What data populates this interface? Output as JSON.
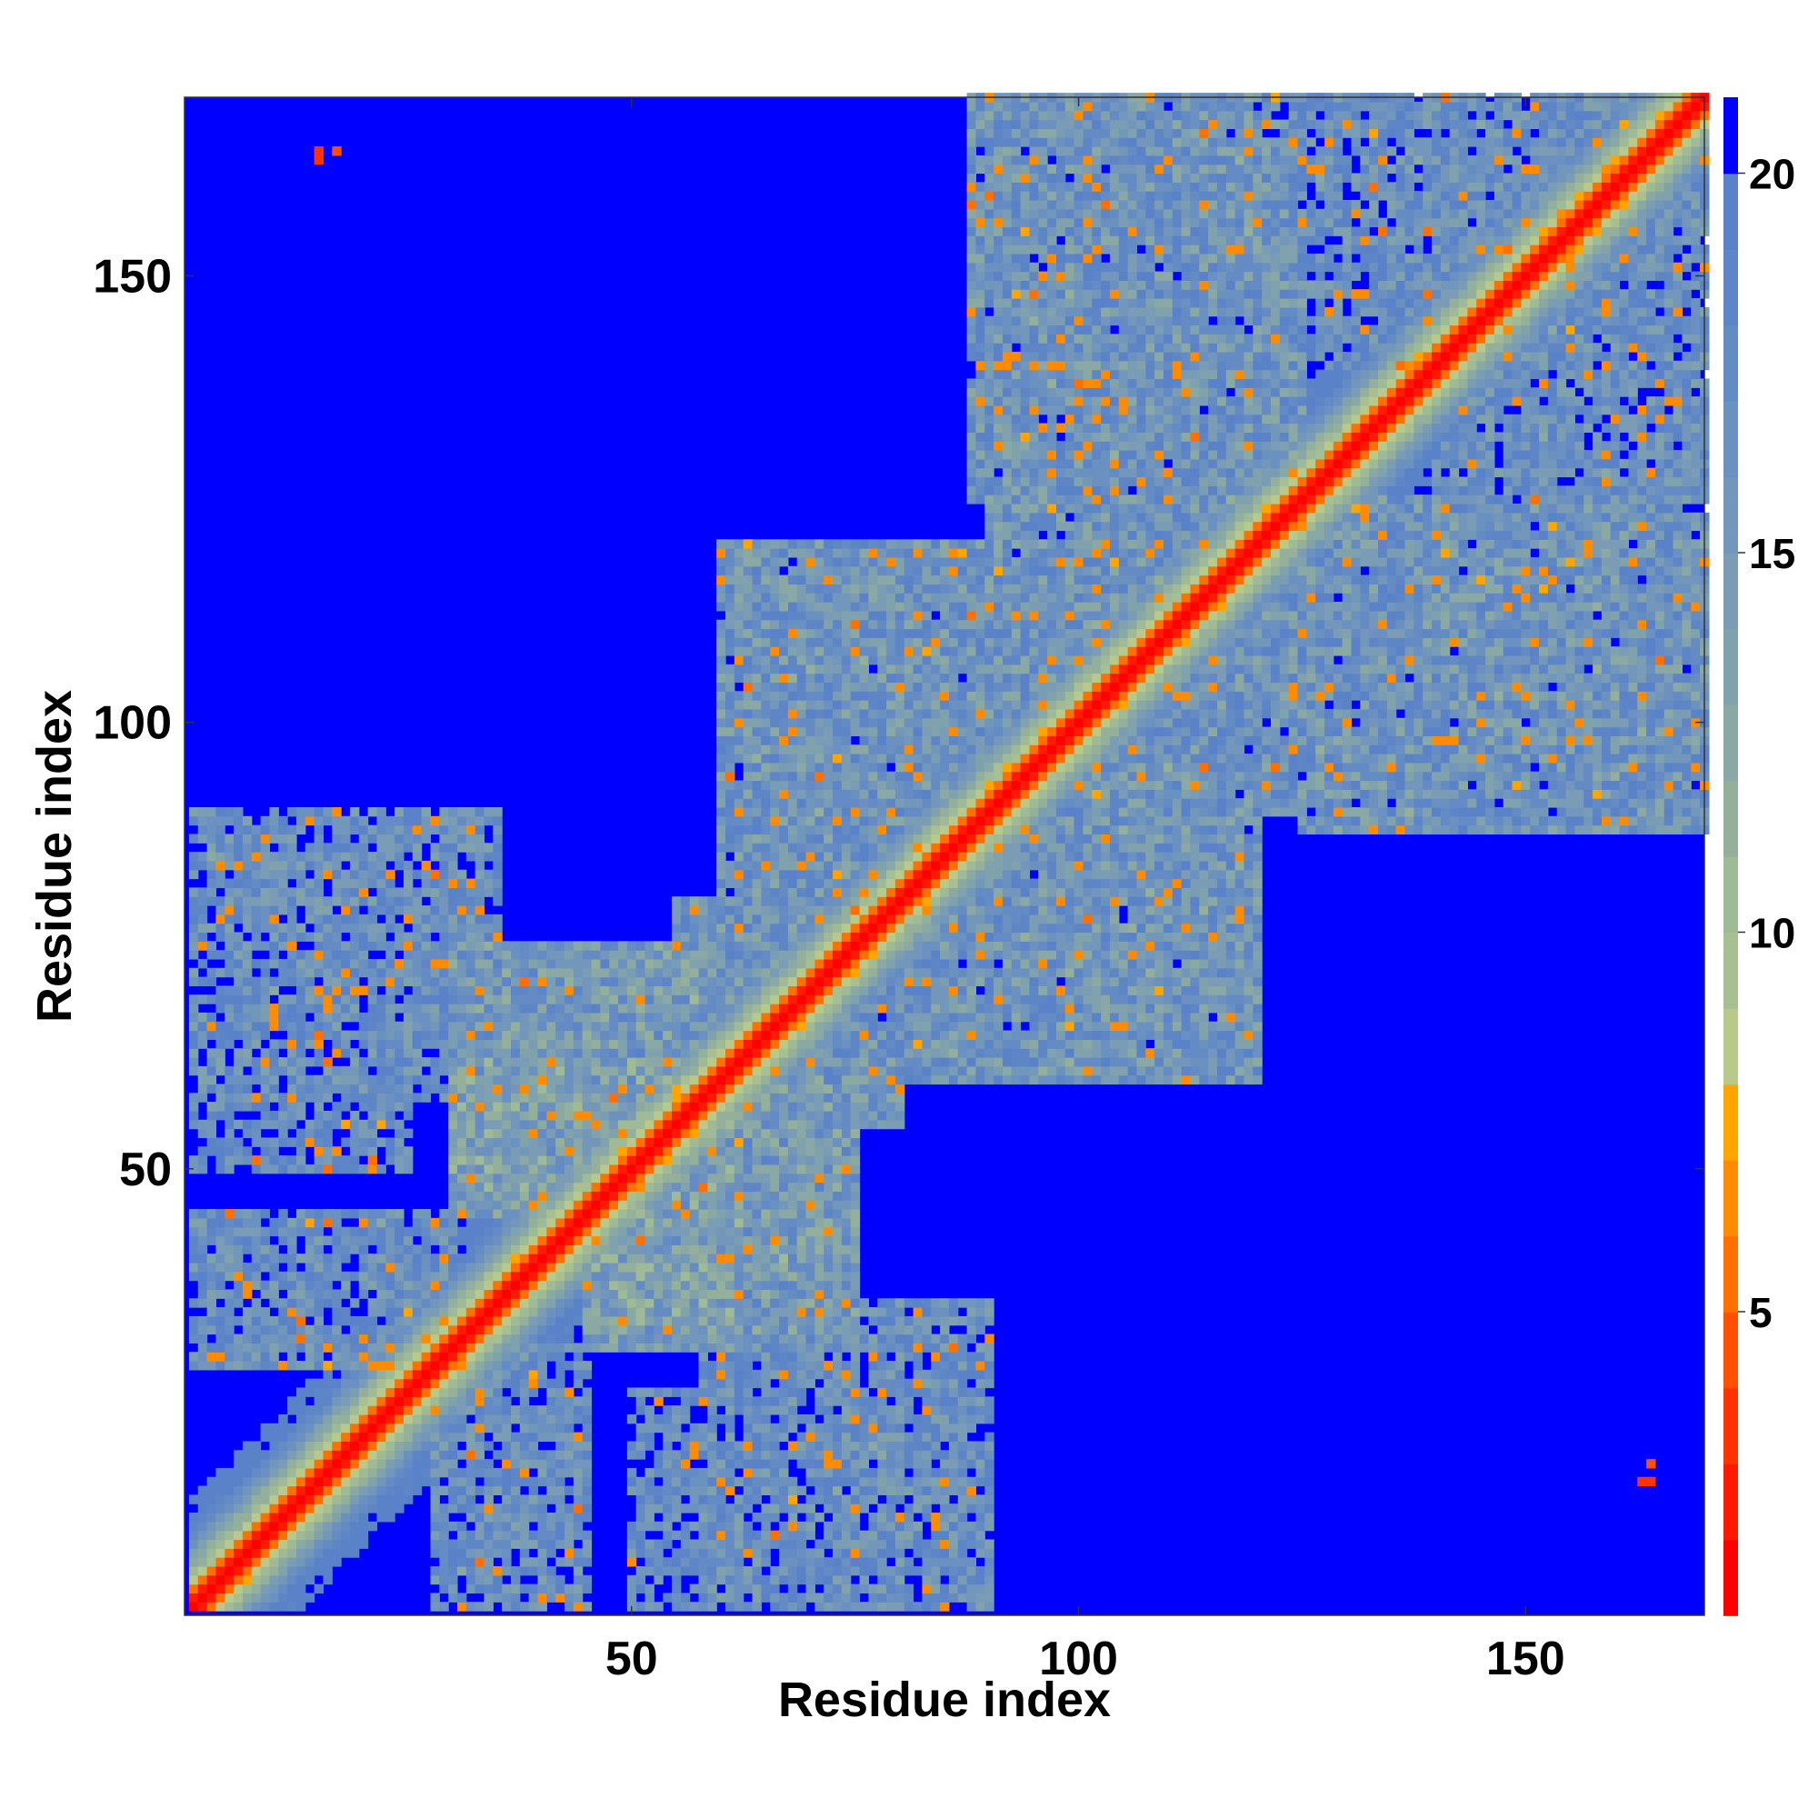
{
  "chart_data": {
    "type": "heatmap",
    "title": "",
    "xlabel": "Residue index",
    "ylabel": "Residue index",
    "n_residues": 170,
    "xlim": [
      1,
      170
    ],
    "ylim": [
      1,
      170
    ],
    "x_ticks": [
      50,
      100,
      150
    ],
    "y_ticks": [
      50,
      100,
      150
    ],
    "colorbar": {
      "ticks": [
        5,
        10,
        15,
        20
      ],
      "range": [
        1,
        21
      ],
      "levels": [
        {
          "max": 2,
          "color": "#ff0000"
        },
        {
          "max": 3,
          "color": "#ff1a00"
        },
        {
          "max": 4,
          "color": "#ff3300"
        },
        {
          "max": 5,
          "color": "#ff5000"
        },
        {
          "max": 6,
          "color": "#ff7000"
        },
        {
          "max": 7,
          "color": "#ff8c00"
        },
        {
          "max": 8,
          "color": "#ffa500"
        },
        {
          "max": 9,
          "color": "#b9c98a"
        },
        {
          "max": 10,
          "color": "#a8c091"
        },
        {
          "max": 11,
          "color": "#9fba96"
        },
        {
          "max": 12,
          "color": "#94b09b"
        },
        {
          "max": 13,
          "color": "#8aa9a4"
        },
        {
          "max": 14,
          "color": "#80a2ac"
        },
        {
          "max": 15,
          "color": "#7a9cb4"
        },
        {
          "max": 16,
          "color": "#7397ba"
        },
        {
          "max": 17,
          "color": "#6b91c0"
        },
        {
          "max": 18,
          "color": "#648bc3"
        },
        {
          "max": 19,
          "color": "#5e86c6"
        },
        {
          "max": 20,
          "color": "#5a82c8"
        },
        {
          "max": 21,
          "color": "#0000ff"
        }
      ]
    },
    "background_color": "#0000ff",
    "cutoff": 20,
    "diagonal_profile": [
      {
        "offset": 0,
        "value": 1
      },
      {
        "offset": 1,
        "value": 3
      },
      {
        "offset": 2,
        "value": 5.5
      },
      {
        "offset": 3,
        "value": 8.5
      },
      {
        "offset": 4,
        "value": 10.5
      },
      {
        "offset": 5,
        "value": 12
      },
      {
        "offset": 6,
        "value": 14
      },
      {
        "offset": 7,
        "value": 16
      },
      {
        "offset": 8,
        "value": 17.5
      },
      {
        "offset": 9,
        "value": 19
      },
      {
        "offset": 10,
        "value": 19.5
      }
    ],
    "contact_blocks": [
      {
        "x": [
          1,
          35
        ],
        "y": [
          58,
          90
        ],
        "value": 17
      },
      {
        "x": [
          1,
          30
        ],
        "y": [
          28,
          45
        ],
        "value": 17
      },
      {
        "x": [
          30,
          60
        ],
        "y": [
          58,
          75
        ],
        "value": 15
      },
      {
        "x": [
          45,
          62
        ],
        "y": [
          30,
          55
        ],
        "value": 14
      },
      {
        "x": [
          55,
          80
        ],
        "y": [
          55,
          80
        ],
        "value": 16
      },
      {
        "x": [
          50,
          90
        ],
        "y": [
          1,
          25
        ],
        "value": 18
      },
      {
        "x": [
          60,
          90
        ],
        "y": [
          95,
          120
        ],
        "value": 16
      },
      {
        "x": [
          70,
          110
        ],
        "y": [
          60,
          90
        ],
        "value": 16
      },
      {
        "x": [
          90,
          125
        ],
        "y": [
          130,
          165
        ],
        "value": 16
      },
      {
        "x": [
          100,
          130
        ],
        "y": [
          90,
          130
        ],
        "value": 16
      },
      {
        "x": [
          125,
          170
        ],
        "y": [
          88,
          120
        ],
        "value": 16
      },
      {
        "x": [
          140,
          170
        ],
        "y": [
          120,
          168
        ],
        "value": 17
      },
      {
        "x": [
          120,
          160
        ],
        "y": [
          150,
          170
        ],
        "value": 17
      }
    ],
    "hot_spots": [
      {
        "x": 15,
        "y": 164,
        "value": 4
      },
      {
        "x": 17,
        "y": 164,
        "value": 5
      },
      {
        "x": 163,
        "y": 15,
        "value": 4
      },
      {
        "x": 45,
        "y": 56,
        "value": 7
      },
      {
        "x": 48,
        "y": 58,
        "value": 6
      },
      {
        "x": 55,
        "y": 46,
        "value": 7
      },
      {
        "x": 60,
        "y": 40,
        "value": 7
      },
      {
        "x": 108,
        "y": 75,
        "value": 7
      },
      {
        "x": 104,
        "y": 80,
        "value": 7
      },
      {
        "x": 95,
        "y": 135,
        "value": 7
      },
      {
        "x": 100,
        "y": 130,
        "value": 7
      },
      {
        "x": 140,
        "y": 98,
        "value": 7
      },
      {
        "x": 145,
        "y": 100,
        "value": 7
      },
      {
        "x": 135,
        "y": 105,
        "value": 7
      },
      {
        "x": 20,
        "y": 70,
        "value": 7
      },
      {
        "x": 25,
        "y": 75,
        "value": 7
      },
      {
        "x": 30,
        "y": 82,
        "value": 7
      },
      {
        "x": 10,
        "y": 68,
        "value": 7
      },
      {
        "x": 28,
        "y": 23,
        "value": 7
      },
      {
        "x": 33,
        "y": 35,
        "value": 7
      },
      {
        "x": 78,
        "y": 25,
        "value": 7
      },
      {
        "x": 72,
        "y": 18,
        "value": 7
      },
      {
        "x": 68,
        "y": 10,
        "value": 7
      },
      {
        "x": 98,
        "y": 150,
        "value": 7
      },
      {
        "x": 110,
        "y": 125,
        "value": 7
      }
    ]
  }
}
